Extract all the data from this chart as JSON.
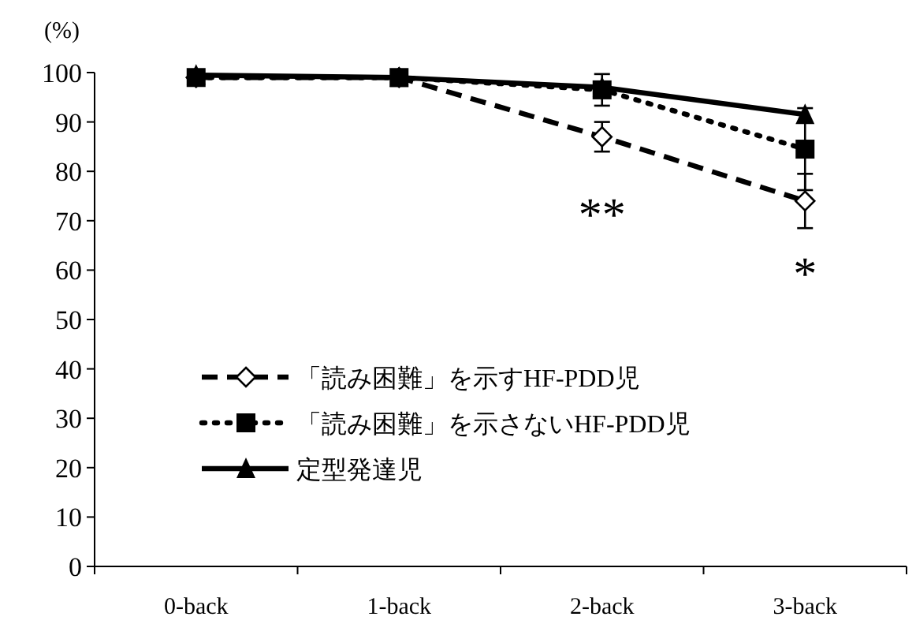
{
  "chart_data": {
    "type": "line",
    "ylabel": "(%)",
    "categories": [
      "0-back",
      "1-back",
      "2-back",
      "3-back"
    ],
    "ylim": [
      0,
      100
    ],
    "yticks": [
      0,
      10,
      20,
      30,
      40,
      50,
      60,
      70,
      80,
      90,
      100
    ],
    "grid": false,
    "legend": "bottom left",
    "series": [
      {
        "name": "「読み困難」を示すHF-PDD児",
        "color": "#000000",
        "line_style": "dashed",
        "marker": "diamond",
        "values": [
          99,
          99,
          87,
          74
        ],
        "errors": [
          null,
          null,
          3,
          5.5
        ]
      },
      {
        "name": "「読み困難」を示さないHF-PDD児",
        "color": "#000000",
        "line_style": "dotted",
        "marker": "square",
        "values": [
          99,
          99,
          96.5,
          84.5
        ],
        "errors": [
          null,
          null,
          3.2,
          8.3
        ]
      },
      {
        "name": "定型発達児",
        "color": "#000000",
        "line_style": "solid",
        "marker": "triangle",
        "values": [
          99.5,
          99,
          97,
          91.5
        ]
      }
    ],
    "annotations": [
      "**",
      "*"
    ]
  }
}
